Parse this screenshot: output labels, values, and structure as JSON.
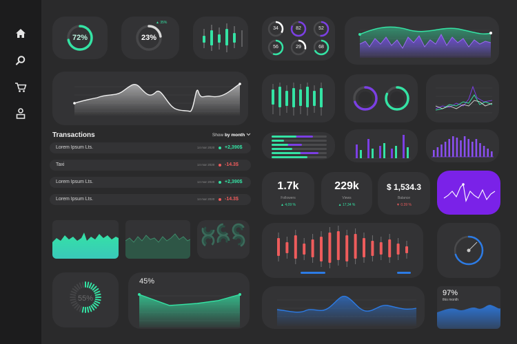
{
  "colors": {
    "background": "#2a2a2b",
    "sidebar": "#1c1c1d",
    "card": "#333335",
    "green": "#34e3a4",
    "purple": "#7b3fe4",
    "red": "#ee5c5c",
    "blue": "#2c7be5"
  },
  "sidebar": {
    "items": [
      {
        "icon": "home-icon"
      },
      {
        "icon": "search-icon"
      },
      {
        "icon": "cart-icon"
      },
      {
        "icon": "user-icon"
      }
    ]
  },
  "gauges": {
    "gauge_1": {
      "label": "72%",
      "value": 72
    },
    "gauge_2": {
      "label": "23%",
      "value": 23,
      "delta": "▲ 35%"
    }
  },
  "circle_grid": {
    "values": [
      "34",
      "82",
      "52",
      "56",
      "29",
      "68"
    ],
    "levels": [
      34,
      82,
      52,
      56,
      29,
      68
    ]
  },
  "transactions": {
    "title": "Transactions",
    "show_prefix": "Show ",
    "show_value": "by month",
    "rows": [
      {
        "name": "Lorem Ipsum Lts.",
        "date": "14 mar 2020",
        "amount": "+2,390$",
        "direction": "up"
      },
      {
        "name": "Taxi",
        "date": "14 mar 2020",
        "amount": "-14.3$",
        "direction": "down"
      },
      {
        "name": "Lorem Ipsum Lts.",
        "date": "14 mar 2020",
        "amount": "+2,390$",
        "direction": "up"
      },
      {
        "name": "Lorem Ipsum Lts.",
        "date": "14 mar 2020",
        "amount": "-14.3$",
        "direction": "down"
      }
    ]
  },
  "stats": {
    "followers": {
      "value": "1.7k",
      "label": "Followers",
      "delta": "▲ 4,09 %",
      "direction": "up"
    },
    "views": {
      "value": "229k",
      "label": "Views",
      "delta": "▲ 17,34 %",
      "direction": "up"
    },
    "balance": {
      "value": "$ 1,534.3",
      "label": "Balance",
      "delta": "▼ 0.39 %",
      "direction": "down"
    }
  },
  "ring_progress": {
    "label": "55%",
    "value": 55
  },
  "area_chart": {
    "label": "45%"
  },
  "month_widget": {
    "value": "97%",
    "caption": "this month"
  },
  "dial": {
    "value": 70
  }
}
